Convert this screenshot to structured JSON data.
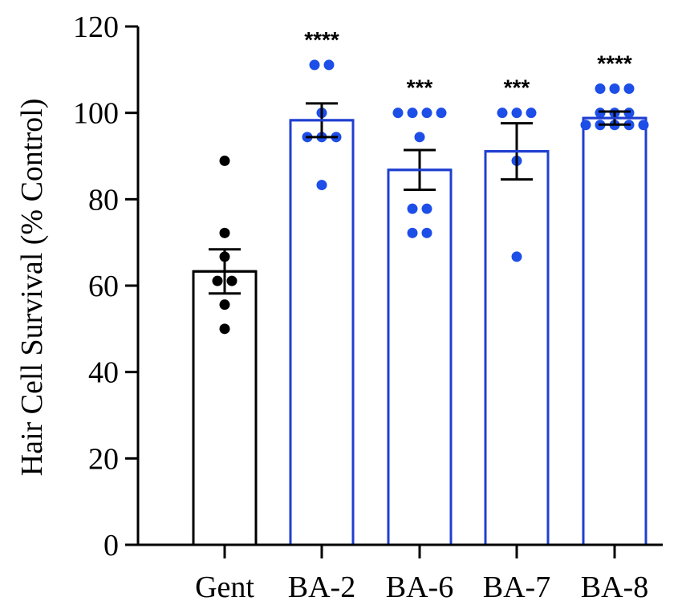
{
  "chart_data": {
    "type": "bar",
    "title": "",
    "xlabel": "",
    "ylabel": "Hair Cell Survival (% Control)",
    "ylim": [
      0,
      120
    ],
    "yticks": [
      0,
      20,
      40,
      60,
      80,
      100,
      120
    ],
    "categories": [
      "Gent",
      "BA-2",
      "BA-6",
      "BA-7",
      "BA-8"
    ],
    "means": [
      63.3,
      98.3,
      86.8,
      91.1,
      98.8
    ],
    "sem": [
      5.1,
      3.9,
      4.6,
      6.5,
      1.5
    ],
    "points": [
      [
        88.9,
        72.2,
        66.7,
        61.1,
        61.1,
        55.6,
        50.0
      ],
      [
        111.1,
        111.1,
        100.0,
        94.4,
        94.4,
        94.4,
        83.3
      ],
      [
        100.0,
        100.0,
        100.0,
        100.0,
        94.4,
        77.8,
        77.8,
        72.2,
        72.2
      ],
      [
        100.0,
        100.0,
        100.0,
        88.9,
        66.7
      ],
      [
        105.6,
        105.6,
        105.6,
        100.0,
        100.0,
        100.0,
        97.2,
        97.2,
        97.2,
        97.2,
        97.2
      ]
    ],
    "significance": [
      "",
      "****",
      "***",
      "***",
      "****"
    ],
    "colors": [
      "#000000",
      "#1f3fd1",
      "#1f3fd1",
      "#1f3fd1",
      "#1f3fd1"
    ],
    "point_colors": [
      "#000000",
      "#1d4ee8",
      "#1d4ee8",
      "#1d4ee8",
      "#1d4ee8"
    ]
  }
}
